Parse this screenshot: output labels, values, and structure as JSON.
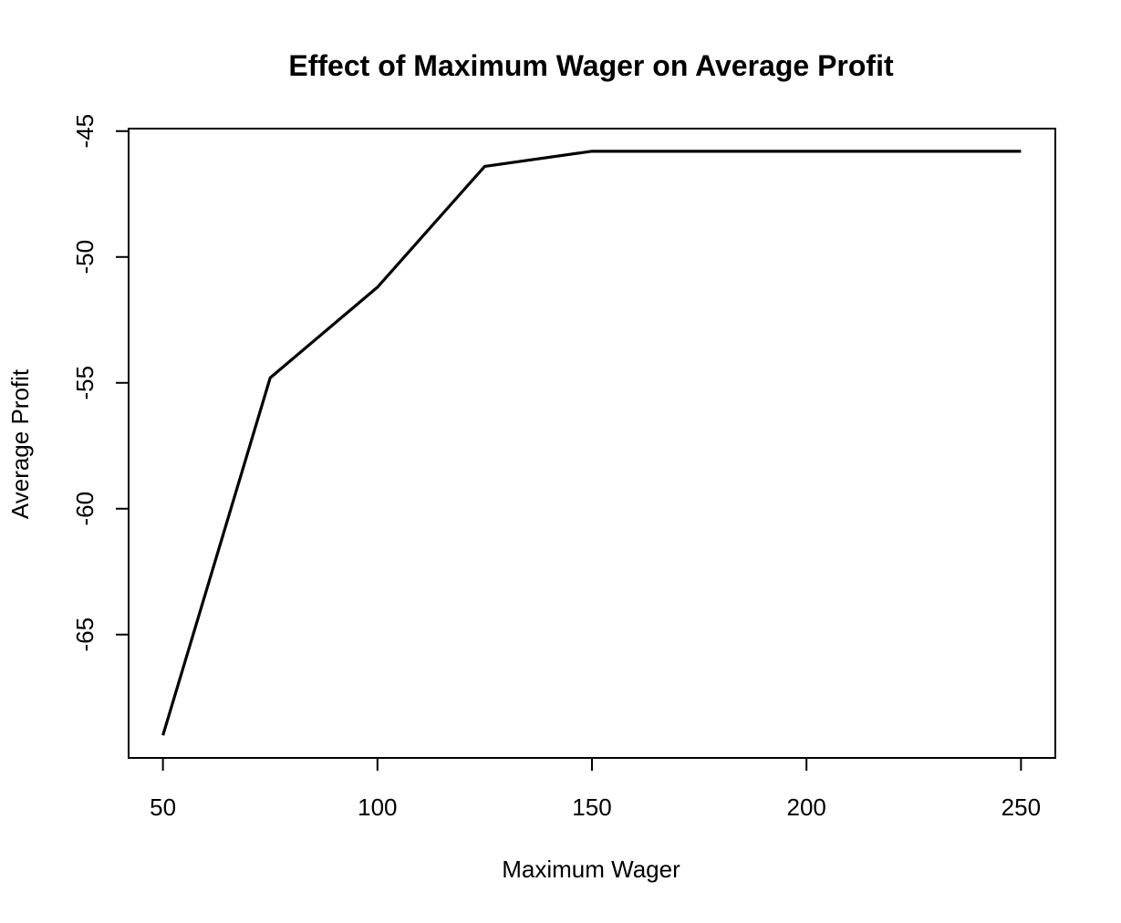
{
  "chart_data": {
    "type": "line",
    "title": "Effect of Maximum Wager on Average Profit",
    "xlabel": "Maximum Wager",
    "ylabel": "Average Profit",
    "x": [
      50,
      75,
      100,
      125,
      150,
      175,
      200,
      225,
      250
    ],
    "series": [
      {
        "values": [
          -69.0,
          -54.8,
          -51.2,
          -46.4,
          -45.8,
          -45.8,
          -45.8,
          -45.8,
          -45.8
        ]
      }
    ],
    "xlim": [
      42,
      258
    ],
    "ylim": [
      -69.9,
      -44.9
    ],
    "xticks": [
      50,
      100,
      150,
      200,
      250
    ],
    "xtick_labels": [
      "50",
      "100",
      "150",
      "200",
      "250"
    ],
    "yticks": [
      -65,
      -60,
      -55,
      -50,
      -45
    ],
    "ytick_labels": [
      "-65",
      "-60",
      "-55",
      "-50",
      "-45"
    ],
    "line_color": "#000000",
    "grid": false,
    "legend": false
  }
}
